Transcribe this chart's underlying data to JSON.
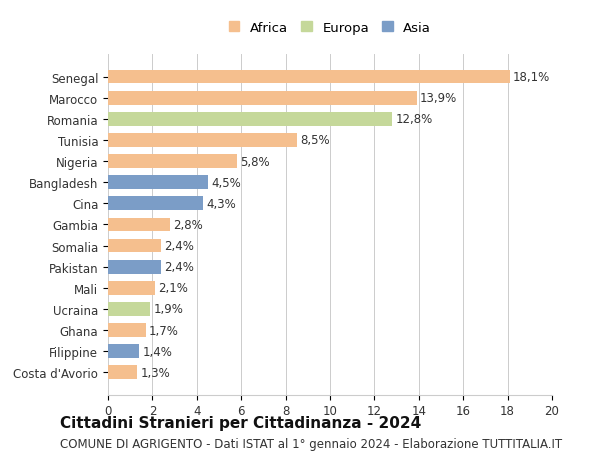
{
  "categories": [
    "Costa d'Avorio",
    "Filippine",
    "Ghana",
    "Ucraina",
    "Mali",
    "Pakistan",
    "Somalia",
    "Gambia",
    "Cina",
    "Bangladesh",
    "Nigeria",
    "Tunisia",
    "Romania",
    "Marocco",
    "Senegal"
  ],
  "values": [
    1.3,
    1.4,
    1.7,
    1.9,
    2.1,
    2.4,
    2.4,
    2.8,
    4.3,
    4.5,
    5.8,
    8.5,
    12.8,
    13.9,
    18.1
  ],
  "continents": [
    "Africa",
    "Asia",
    "Africa",
    "Europa",
    "Africa",
    "Asia",
    "Africa",
    "Africa",
    "Asia",
    "Asia",
    "Africa",
    "Africa",
    "Europa",
    "Africa",
    "Africa"
  ],
  "colors": {
    "Africa": "#F5BF8E",
    "Europa": "#C5D89A",
    "Asia": "#7B9DC7"
  },
  "legend_labels": [
    "Africa",
    "Europa",
    "Asia"
  ],
  "legend_colors": [
    "#F5BF8E",
    "#C5D89A",
    "#7B9DC7"
  ],
  "xlim": [
    0,
    20
  ],
  "xticks": [
    0,
    2,
    4,
    6,
    8,
    10,
    12,
    14,
    16,
    18,
    20
  ],
  "title": "Cittadini Stranieri per Cittadinanza - 2024",
  "subtitle": "COMUNE DI AGRIGENTO - Dati ISTAT al 1° gennaio 2024 - Elaborazione TUTTITALIA.IT",
  "title_fontsize": 11,
  "subtitle_fontsize": 8.5,
  "label_fontsize": 8.5,
  "tick_fontsize": 8.5,
  "bar_height": 0.65,
  "background_color": "#FFFFFF",
  "grid_color": "#CCCCCC"
}
